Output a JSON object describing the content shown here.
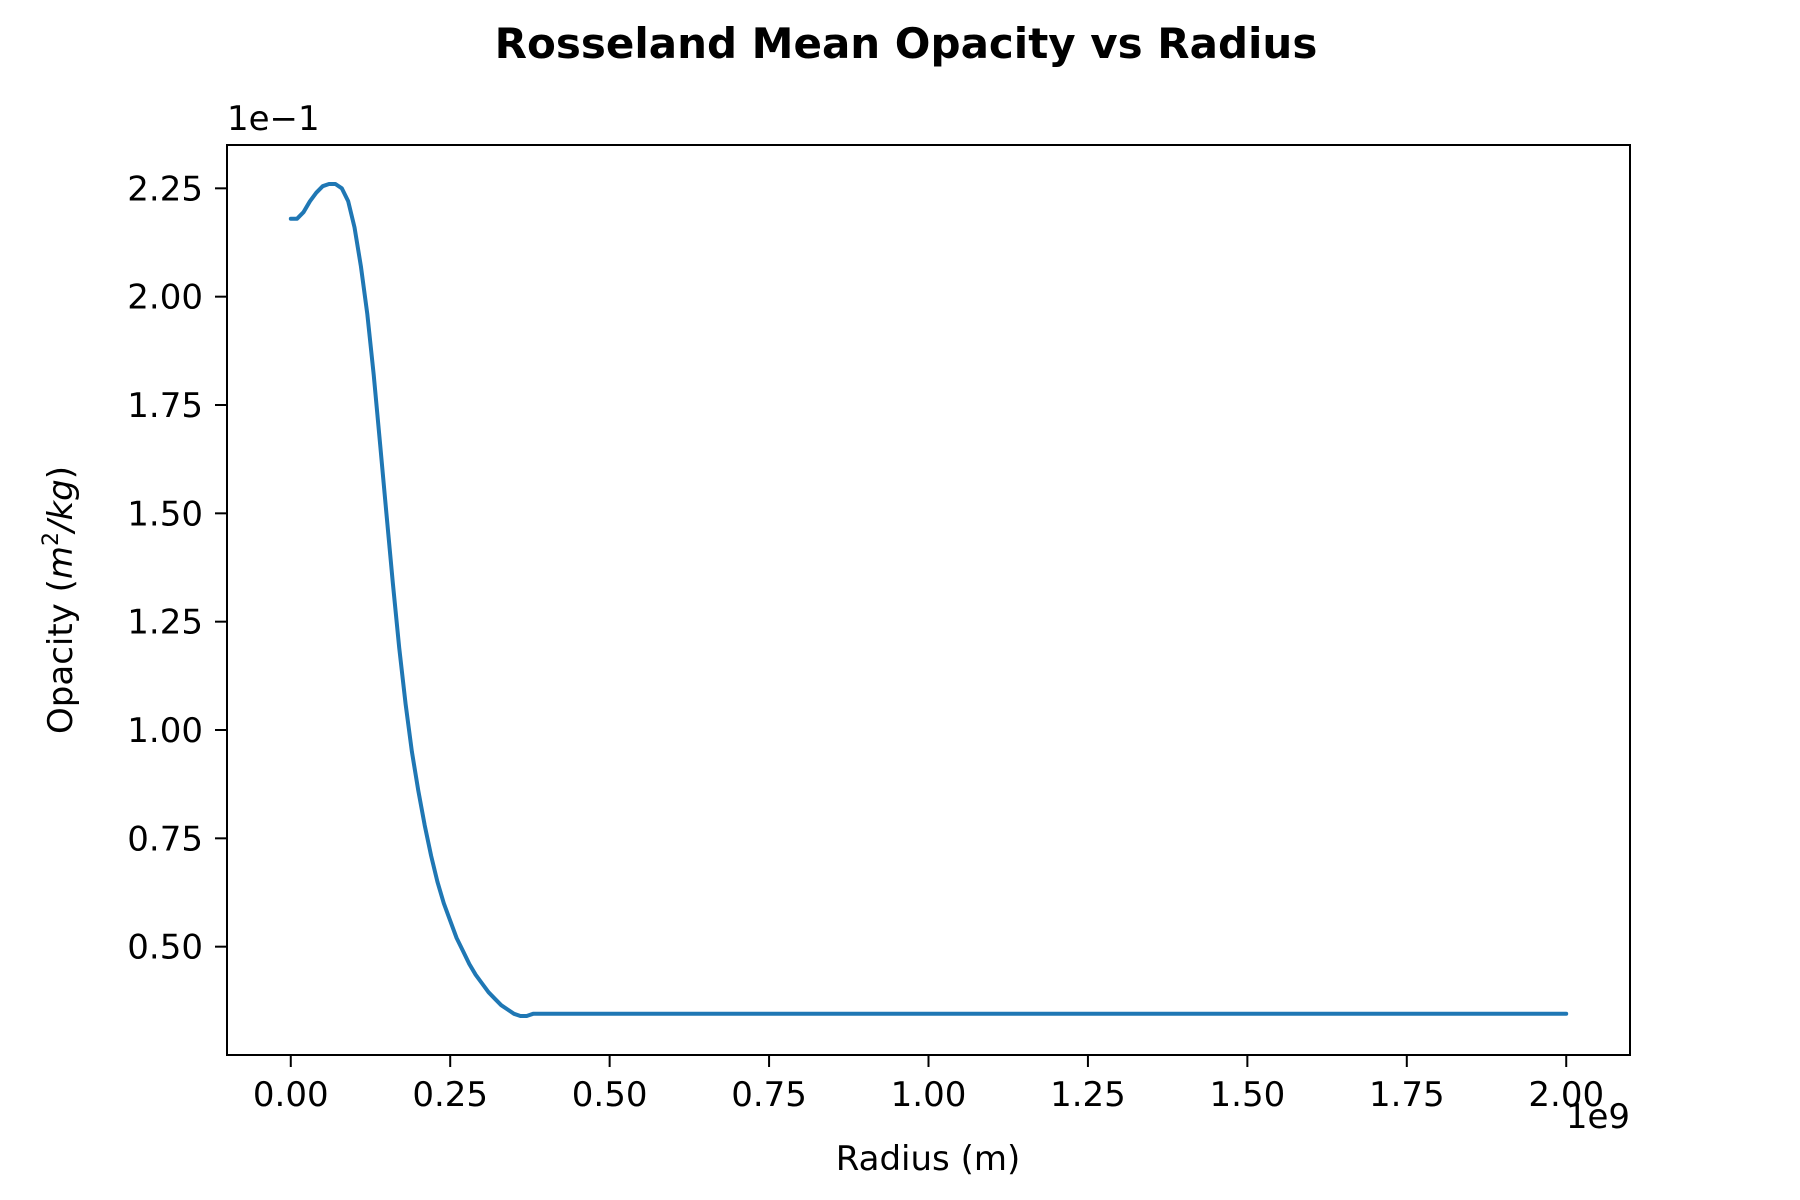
{
  "chart_data": {
    "type": "line",
    "title": "Rosseland Mean Opacity vs Radius",
    "xlabel": "Radius (m)",
    "ylabel_prefix": "Opacity (",
    "ylabel_math_m": "m",
    "ylabel_math_sup": "2",
    "ylabel_math_rest": "/kg",
    "ylabel_suffix": ")",
    "x_offset_text": "1e9",
    "y_offset_text": "1e−1",
    "x_scale": 1000000000.0,
    "y_scale": 0.1,
    "xlim": [
      -0.1,
      2.1
    ],
    "ylim": [
      0.25,
      2.35
    ],
    "x_ticks": [
      0.0,
      0.25,
      0.5,
      0.75,
      1.0,
      1.25,
      1.5,
      1.75,
      2.0
    ],
    "x_tick_labels": [
      "0.00",
      "0.25",
      "0.50",
      "0.75",
      "1.00",
      "1.25",
      "1.50",
      "1.75",
      "2.00"
    ],
    "y_ticks": [
      0.5,
      0.75,
      1.0,
      1.25,
      1.5,
      1.75,
      2.0,
      2.25
    ],
    "y_tick_labels": [
      "0.50",
      "0.75",
      "1.00",
      "1.25",
      "1.50",
      "1.75",
      "2.00",
      "2.25"
    ],
    "grid": false,
    "line_color": "#1f77b4",
    "series": [
      {
        "x": [
          0.0,
          0.01,
          0.02,
          0.03,
          0.04,
          0.05,
          0.06,
          0.07,
          0.08,
          0.09,
          0.1,
          0.11,
          0.12,
          0.13,
          0.14,
          0.15,
          0.16,
          0.17,
          0.18,
          0.19,
          0.2,
          0.21,
          0.22,
          0.23,
          0.24,
          0.25,
          0.26,
          0.27,
          0.28,
          0.29,
          0.3,
          0.31,
          0.32,
          0.33,
          0.34,
          0.35,
          0.36,
          0.37,
          0.38,
          0.385,
          0.4,
          0.6,
          0.8,
          1.0,
          1.2,
          1.4,
          1.6,
          1.8,
          2.0
        ],
        "y": [
          2.18,
          2.18,
          2.195,
          2.22,
          2.24,
          2.255,
          2.26,
          2.26,
          2.25,
          2.22,
          2.16,
          2.07,
          1.96,
          1.82,
          1.66,
          1.5,
          1.34,
          1.19,
          1.06,
          0.95,
          0.86,
          0.78,
          0.71,
          0.65,
          0.6,
          0.56,
          0.52,
          0.49,
          0.46,
          0.435,
          0.415,
          0.395,
          0.38,
          0.365,
          0.355,
          0.345,
          0.34,
          0.34,
          0.345,
          0.345,
          0.345,
          0.345,
          0.345,
          0.345,
          0.345,
          0.345,
          0.345,
          0.345,
          0.345
        ]
      }
    ]
  }
}
